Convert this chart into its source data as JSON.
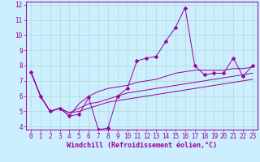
{
  "title": "",
  "xlabel": "Windchill (Refroidissement éolien,°C)",
  "ylabel": "",
  "background_color": "#cceeff",
  "grid_color": "#aaddcc",
  "line_color": "#990099",
  "xlim": [
    -0.5,
    23.5
  ],
  "ylim": [
    3.8,
    12.2
  ],
  "xticks": [
    0,
    1,
    2,
    3,
    4,
    5,
    6,
    7,
    8,
    9,
    10,
    11,
    12,
    13,
    14,
    15,
    16,
    17,
    18,
    19,
    20,
    21,
    22,
    23
  ],
  "yticks": [
    4,
    5,
    6,
    7,
    8,
    9,
    10,
    11,
    12
  ],
  "series": [
    [
      7.6,
      6.0,
      5.0,
      5.2,
      4.7,
      4.8,
      5.9,
      3.8,
      3.9,
      6.0,
      6.5,
      8.3,
      8.5,
      8.6,
      9.6,
      10.5,
      11.8,
      8.0,
      7.4,
      7.5,
      7.5,
      8.5,
      7.3,
      8.0
    ],
    [
      7.6,
      6.0,
      5.0,
      5.2,
      4.7,
      5.5,
      6.0,
      6.3,
      6.5,
      6.6,
      6.7,
      6.9,
      7.0,
      7.1,
      7.3,
      7.5,
      7.6,
      7.7,
      7.7,
      7.7,
      7.7,
      7.8,
      7.8,
      7.9
    ],
    [
      7.6,
      6.0,
      5.0,
      5.2,
      4.9,
      5.2,
      5.5,
      5.6,
      5.8,
      6.0,
      6.2,
      6.3,
      6.4,
      6.5,
      6.6,
      6.7,
      6.8,
      6.9,
      7.0,
      7.1,
      7.2,
      7.3,
      7.4,
      7.5
    ],
    [
      7.6,
      6.0,
      5.0,
      5.2,
      4.9,
      5.0,
      5.2,
      5.4,
      5.6,
      5.7,
      5.8,
      5.9,
      6.0,
      6.1,
      6.2,
      6.3,
      6.4,
      6.5,
      6.6,
      6.7,
      6.8,
      6.9,
      7.0,
      7.1
    ]
  ],
  "marker_series": 0,
  "marker": "D",
  "markersize": 2.5,
  "tick_fontsize": 5.5,
  "xlabel_fontsize": 6.0
}
